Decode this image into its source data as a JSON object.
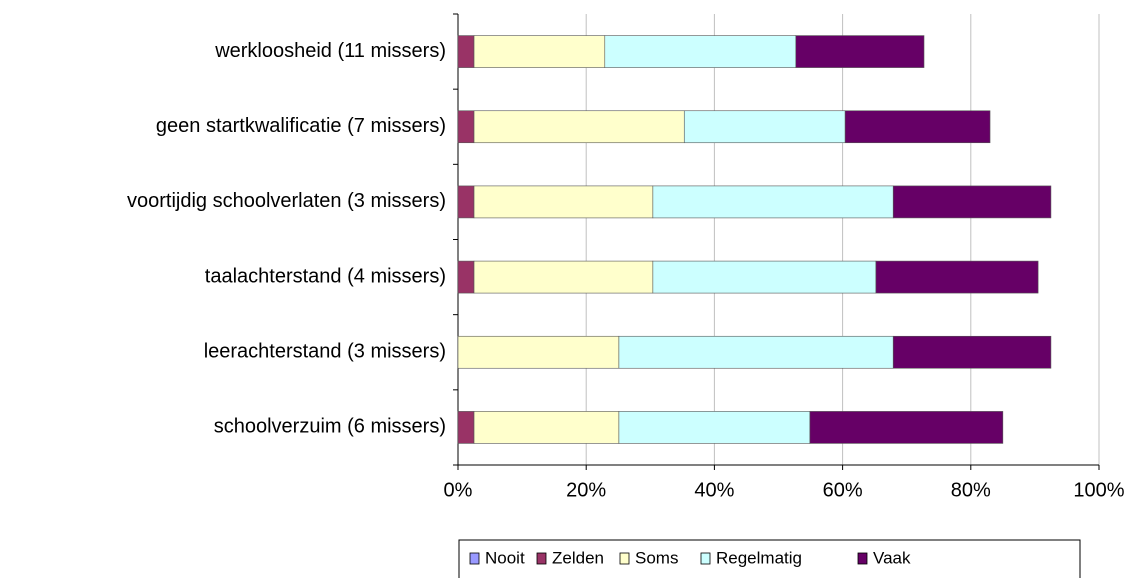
{
  "chart_data": {
    "type": "bar",
    "orientation": "horizontal",
    "stacked": true,
    "categories": [
      "werkloosheid (11 missers)",
      "geen startkwalificatie (7 missers)",
      "voortijdig schoolverlaten (3 missers)",
      "taalachterstand (4 missers)",
      "leerachterstand (3 missers)",
      "schoolverzuim (6 missers)"
    ],
    "series": [
      {
        "name": "Nooit",
        "color": "#9999ff",
        "values": [
          0,
          0,
          0,
          0,
          0,
          0
        ]
      },
      {
        "name": "Zelden",
        "color": "#993366",
        "values": [
          2.5,
          2.5,
          2.5,
          2.5,
          0,
          2.5
        ]
      },
      {
        "name": "Soms",
        "color": "#ffffcc",
        "values": [
          20.4,
          32.8,
          27.9,
          27.9,
          25.1,
          22.6
        ]
      },
      {
        "name": "Regelmatig",
        "color": "#ccffff",
        "values": [
          29.8,
          25.1,
          37.5,
          34.8,
          42.8,
          29.8
        ]
      },
      {
        "name": "Vaak",
        "color": "#660066",
        "values": [
          20,
          22.6,
          24.6,
          25.3,
          24.6,
          30.1
        ]
      }
    ],
    "xlim": [
      0,
      100
    ],
    "xticks": [
      {
        "value": 0,
        "label": "0%"
      },
      {
        "value": 20,
        "label": "20%"
      },
      {
        "value": 40,
        "label": "40%"
      },
      {
        "value": 60,
        "label": "60%"
      },
      {
        "value": 80,
        "label": "80%"
      },
      {
        "value": 100,
        "label": "100%"
      }
    ],
    "grid": true,
    "legend": "bottom"
  }
}
